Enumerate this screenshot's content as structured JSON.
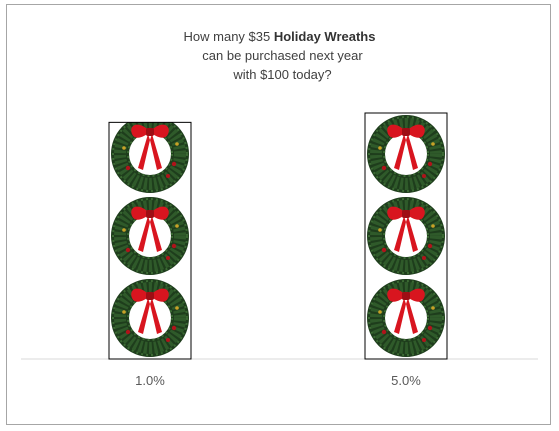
{
  "chart_data": {
    "type": "bar",
    "title_parts": {
      "line1_prefix": "How many $35 ",
      "line1_bold": "Holiday Wreaths",
      "line2": "can be purchased next year",
      "line3": "with $100 today?"
    },
    "categories": [
      "1.0%",
      "5.0%"
    ],
    "values": [
      2.886,
      3.0
    ],
    "xlabel": "",
    "ylabel": "",
    "ylim": [
      0,
      3.05
    ],
    "grid": false,
    "legend": "none",
    "pictogram": "holiday-wreath",
    "colors": {
      "wreath_green": "#2f5a2a",
      "wreath_dark": "#1e3d1c",
      "bow_red": "#d8151f",
      "bow_dark": "#9e0d14",
      "berry": "#b0131a",
      "frame_border": "#a6a6a6",
      "axis_line": "#d9d9d9",
      "bar_border": "#000000"
    }
  }
}
